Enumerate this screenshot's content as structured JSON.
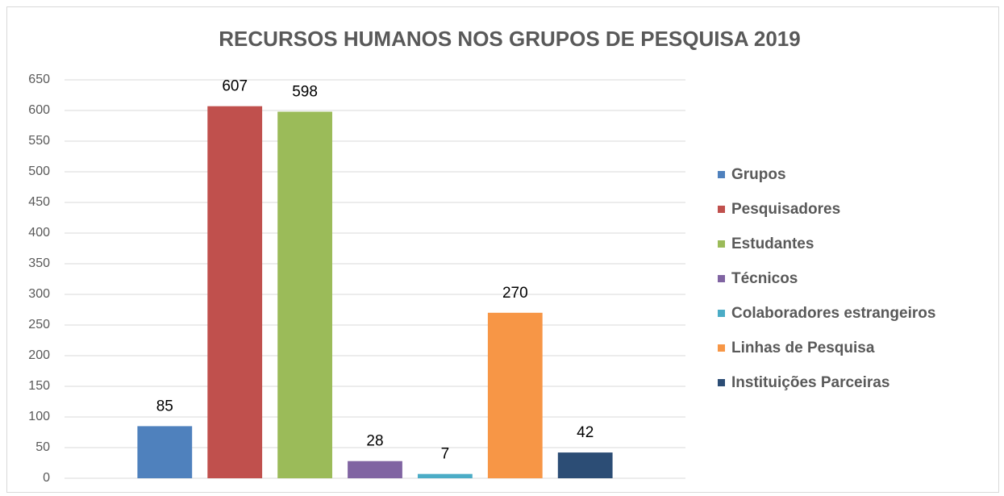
{
  "chart_data": {
    "type": "bar",
    "title": "RECURSOS HUMANOS NOS GRUPOS DE PESQUISA  2019",
    "categories": [
      null
    ],
    "series": [
      {
        "name": "Grupos",
        "color": "#4f81bd",
        "values": [
          85
        ]
      },
      {
        "name": "Pesquisadores",
        "color": "#c0504d",
        "values": [
          607
        ]
      },
      {
        "name": "Estudantes",
        "color": "#9bbb59",
        "values": [
          598
        ]
      },
      {
        "name": "Técnicos",
        "color": "#8064a2",
        "values": [
          28
        ]
      },
      {
        "name": "Colaboradores estrangeiros",
        "color": "#4bacc6",
        "values": [
          7
        ]
      },
      {
        "name": "Linhas de Pesquisa",
        "color": "#f79646",
        "values": [
          270
        ]
      },
      {
        "name": "Instituições Parceiras",
        "color": "#2c4d75",
        "values": [
          42
        ]
      }
    ],
    "ylim": [
      0,
      650
    ],
    "yticks": [
      0,
      50,
      100,
      150,
      200,
      250,
      300,
      350,
      400,
      450,
      500,
      550,
      600,
      650
    ],
    "grid": true,
    "legend": "right"
  }
}
